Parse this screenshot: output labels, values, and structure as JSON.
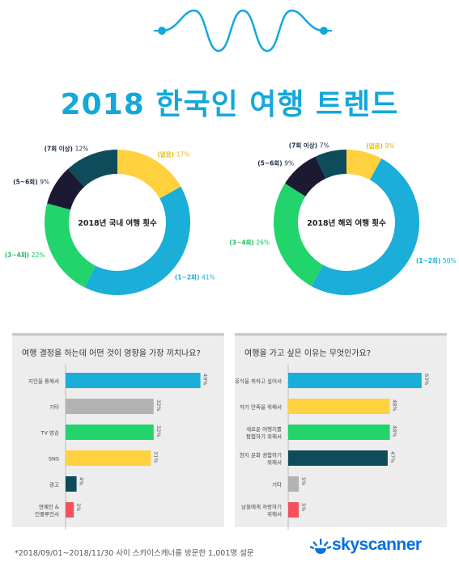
{
  "header": {
    "title": "2018 한국인 여행 트렌드"
  },
  "colors": {
    "accent": "#12a8dc",
    "teal_dark": "#0e4c5c",
    "navy": "#1c1a32",
    "green": "#21d46b",
    "yellow": "#ffd13f",
    "blue": "#1aaed8",
    "gray": "#b3b3b3",
    "red": "#f1535a"
  },
  "chart_data": [
    {
      "type": "pie",
      "title": "2018년 국내 여행 횟수",
      "donut": true,
      "slices": [
        {
          "label": "(없음)",
          "value": 17,
          "value_label": "17%",
          "color": "#ffd13f"
        },
        {
          "label": "(1~2회)",
          "value": 41,
          "value_label": "41%",
          "color": "#1aaed8"
        },
        {
          "label": "(3~4회)",
          "value": 22,
          "value_label": "22%",
          "color": "#21d46b"
        },
        {
          "label": "(5~6회)",
          "value": 9,
          "value_label": "9%",
          "color": "#1c1a32"
        },
        {
          "label": "(7회 이상)",
          "value": 12,
          "value_label": "12%",
          "color": "#0e4c5c"
        }
      ]
    },
    {
      "type": "pie",
      "title": "2018년 해외 여행 횟수",
      "donut": true,
      "slices": [
        {
          "label": "(없음)",
          "value": 8,
          "value_label": "8%",
          "color": "#ffd13f"
        },
        {
          "label": "(1~2회)",
          "value": 50,
          "value_label": "50%",
          "color": "#1aaed8"
        },
        {
          "label": "(3~4회)",
          "value": 26,
          "value_label": "26%",
          "color": "#21d46b"
        },
        {
          "label": "(5~6회)",
          "value": 9,
          "value_label": "9%",
          "color": "#1c1a32"
        },
        {
          "label": "(7회 이상)",
          "value": 7,
          "value_label": "7%",
          "color": "#0e4c5c"
        }
      ]
    },
    {
      "type": "bar",
      "orientation": "horizontal",
      "title": "여행 결정을 하는데 어떤 것이 영향을 가장 끼치나요?",
      "categories": [
        [
          "지인을 통해서"
        ],
        [
          "기타"
        ],
        [
          "TV 방송"
        ],
        [
          "SNS"
        ],
        [
          "광고"
        ],
        [
          "연예인 &",
          "인플루언서"
        ]
      ],
      "values": [
        49,
        32,
        32,
        31,
        4,
        3
      ],
      "value_labels": [
        "49%",
        "32%",
        "32%",
        "31%",
        "4%",
        "3%"
      ],
      "bar_colors": [
        "#1aaed8",
        "#b3b3b3",
        "#21d46b",
        "#ffd13f",
        "#0e4c5c",
        "#f1535a"
      ],
      "xlim": [
        0,
        50
      ]
    },
    {
      "type": "bar",
      "orientation": "horizontal",
      "title": "여행을 가고 싶은 이유는 무엇인가요?",
      "categories": [
        [
          "휴식을 취하고 싶어서"
        ],
        [
          "자기 만족을 위해서"
        ],
        [
          "새로운 여행지를",
          "탐험하기 위해서"
        ],
        [
          "현지 문화 경험하기",
          "위해서"
        ],
        [
          "기타"
        ],
        [
          "남들에게 자랑하기",
          "위해서"
        ]
      ],
      "values": [
        63,
        48,
        48,
        47,
        5,
        5
      ],
      "value_labels": [
        "63%",
        "48%",
        "48%",
        "47%",
        "5%",
        "5%"
      ],
      "bar_colors": [
        "#1aaed8",
        "#ffd13f",
        "#21d46b",
        "#0e4c5c",
        "#b3b3b3",
        "#f1535a"
      ],
      "xlim": [
        0,
        65
      ]
    }
  ],
  "footer": {
    "note": "*2018/09/01~2018/11/30 사이 스카이스캐너를 방문한 1,001명 설문",
    "logo_text": "skyscanner"
  }
}
